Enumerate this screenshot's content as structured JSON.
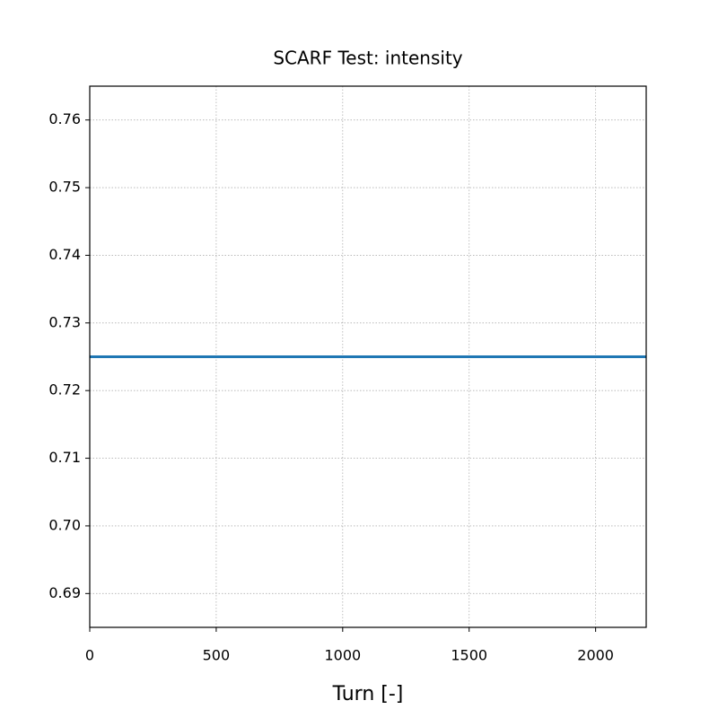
{
  "chart_data": {
    "type": "line",
    "title": "SCARF Test: intensity",
    "x_label": "Turn [-]",
    "x": [
      0,
      2200
    ],
    "series": [
      {
        "name": "intensity",
        "color": "#1f77b4",
        "values": [
          0.725,
          0.725
        ]
      }
    ],
    "xlim": [
      0,
      2200
    ],
    "xticks": [
      0,
      500,
      1000,
      1500,
      2000
    ],
    "ylim": [
      0.685,
      0.765
    ],
    "yticks": [
      0.69,
      {
        "value": 0.7,
        "label": "0.70"
      },
      0.71,
      0.72,
      0.73,
      0.74,
      0.75,
      0.76
    ],
    "grid": true
  }
}
